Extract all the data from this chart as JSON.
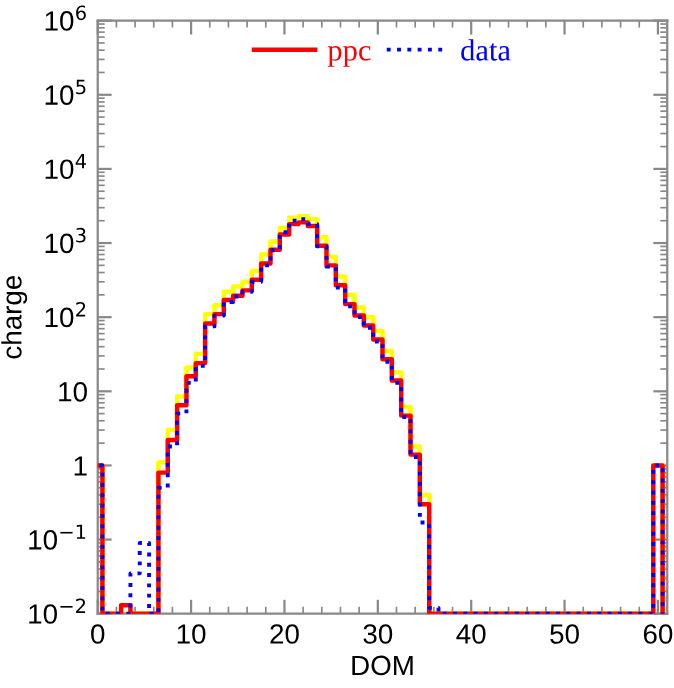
{
  "chart_data": {
    "type": "histogram",
    "xlabel": "DOM",
    "ylabel": "charge",
    "log": "y",
    "bins": [
      -0.5,
      0.5,
      1.5,
      2.5,
      3.5,
      4.5,
      5.5,
      6.5,
      7.5,
      8.5,
      9.5,
      10.5,
      11.5,
      12.5,
      13.5,
      14.5,
      15.5,
      16.5,
      17.5,
      18.5,
      19.5,
      20.5,
      21.5,
      22.5,
      23.5,
      24.5,
      25.5,
      26.5,
      27.5,
      28.5,
      29.5,
      30.5,
      31.5,
      32.5,
      33.5,
      34.5,
      35.5,
      36.5,
      37.5,
      38.5,
      39.5,
      40.5,
      41.5,
      42.5,
      43.5,
      44.5,
      45.5,
      46.5,
      47.5,
      48.5,
      49.5,
      50.5,
      51.5,
      52.5,
      53.5,
      54.5,
      55.5,
      56.5,
      57.5,
      58.5,
      59.5,
      60.5
    ],
    "series": [
      {
        "color": "#ffff00",
        "line_style": "solid",
        "values": [
          1,
          null,
          null,
          null,
          null,
          null,
          null,
          1.1,
          3,
          8.5,
          21,
          32,
          110,
          145,
          220,
          260,
          300,
          420,
          700,
          1050,
          1600,
          2200,
          2300,
          2100,
          1200,
          650,
          350,
          200,
          135,
          100,
          65,
          35,
          18,
          6.1,
          1.8,
          0.4,
          null,
          null,
          null,
          null,
          null,
          null,
          null,
          null,
          null,
          null,
          null,
          null,
          null,
          null,
          null,
          null,
          null,
          null,
          null,
          null,
          null,
          null,
          null,
          null,
          1
        ]
      },
      {
        "name": "ppc",
        "color": "#ff0000",
        "line_style": "solid",
        "values": [
          1,
          null,
          null,
          0.013,
          null,
          null,
          null,
          0.8,
          2.2,
          6.5,
          16,
          24,
          82,
          110,
          170,
          195,
          230,
          320,
          530,
          810,
          1300,
          1800,
          1900,
          1700,
          920,
          500,
          270,
          150,
          105,
          77,
          50,
          27,
          14,
          4.7,
          1.4,
          0.3,
          null,
          null,
          null,
          null,
          null,
          null,
          null,
          null,
          null,
          null,
          null,
          null,
          null,
          null,
          null,
          null,
          null,
          null,
          null,
          null,
          null,
          null,
          null,
          null,
          1
        ]
      },
      {
        "name": "data",
        "color": "#0000ff",
        "line_style": "dotted",
        "values": [
          1,
          null,
          null,
          null,
          0.035,
          0.09,
          null,
          0.5,
          1.8,
          5,
          13,
          22,
          75,
          105,
          160,
          190,
          220,
          300,
          500,
          800,
          1400,
          2000,
          2100,
          1800,
          900,
          480,
          250,
          140,
          100,
          72,
          47,
          25,
          13,
          4.5,
          1.3,
          0.17,
          0.012,
          null,
          null,
          null,
          null,
          null,
          null,
          null,
          null,
          null,
          null,
          null,
          null,
          null,
          null,
          null,
          null,
          null,
          null,
          null,
          null,
          null,
          null,
          null,
          1
        ]
      }
    ],
    "xlim": [
      0,
      61
    ],
    "xticks": [
      0,
      10,
      20,
      30,
      40,
      50,
      60
    ],
    "ylim": [
      0.01,
      1000000
    ],
    "yticks": [
      {
        "value": 0.01,
        "label": "10$^{−2}$"
      },
      {
        "value": 0.1,
        "label": "10$^{−1}$"
      },
      1,
      10,
      {
        "value": 100,
        "label": "10$^{2}$"
      },
      {
        "value": 1000,
        "label": "10$^{3}$"
      },
      {
        "value": 10000,
        "label": "10$^{4}$"
      },
      {
        "value": 100000,
        "label": "10$^{5}$"
      },
      {
        "value": 1000000,
        "label": "10$^{6}$"
      }
    ],
    "grid": false,
    "legend": "top"
  }
}
